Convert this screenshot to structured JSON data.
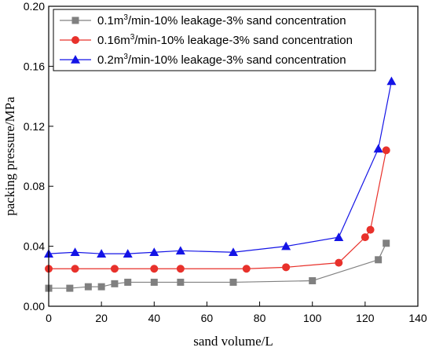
{
  "chart_data": {
    "type": "line",
    "xlabel": "sand volume/L",
    "ylabel": "packing pressure/MPa",
    "xlim": [
      0,
      140
    ],
    "ylim": [
      0,
      0.2
    ],
    "xticks": [
      0,
      20,
      40,
      60,
      80,
      100,
      120,
      140
    ],
    "yticks": [
      0.0,
      0.04,
      0.08,
      0.12,
      0.16,
      0.2
    ],
    "ytick_labels": [
      "0.00",
      "0.04",
      "0.08",
      "0.12",
      "0.16",
      "0.20"
    ],
    "grid": false,
    "legend_position": "top-left",
    "series": [
      {
        "legend_parts": [
          "0.1m",
          "3",
          "/min-10% leakage-3% sand concentration"
        ],
        "color": "#808080",
        "marker": "square",
        "x": [
          0,
          8,
          15,
          20,
          25,
          30,
          40,
          50,
          70,
          100,
          125,
          128
        ],
        "y": [
          0.012,
          0.012,
          0.013,
          0.013,
          0.015,
          0.016,
          0.016,
          0.016,
          0.016,
          0.017,
          0.031,
          0.042
        ]
      },
      {
        "legend_parts": [
          "0.16m",
          "3",
          "/min-10% leakage-3% sand concentration"
        ],
        "color": "#e8312b",
        "marker": "circle",
        "x": [
          0,
          10,
          25,
          40,
          50,
          75,
          90,
          110,
          120,
          122,
          128
        ],
        "y": [
          0.025,
          0.025,
          0.025,
          0.025,
          0.025,
          0.025,
          0.026,
          0.029,
          0.046,
          0.051,
          0.104
        ]
      },
      {
        "legend_parts": [
          "0.2m",
          "3",
          "/min-10% leakage-3% sand concentration"
        ],
        "color": "#1414e6",
        "marker": "triangle",
        "x": [
          0,
          10,
          20,
          30,
          40,
          50,
          70,
          90,
          110,
          125,
          130
        ],
        "y": [
          0.035,
          0.036,
          0.035,
          0.035,
          0.036,
          0.037,
          0.036,
          0.04,
          0.046,
          0.105,
          0.15
        ]
      }
    ]
  }
}
